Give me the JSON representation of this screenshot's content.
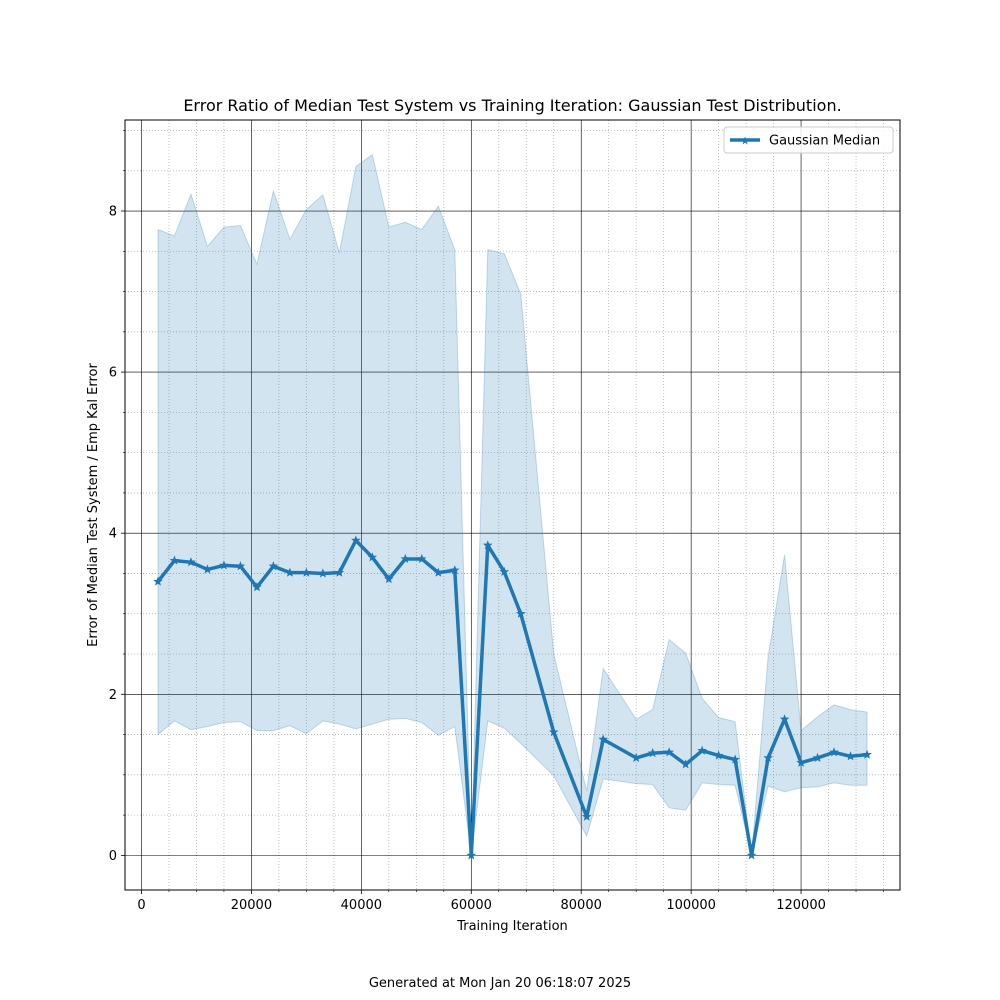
{
  "chart_data": {
    "type": "line",
    "title": "Error Ratio of Median Test System vs Training Iteration: Gaussian Test Distribution.",
    "xlabel": "Training Iteration",
    "ylabel": "Error of Median Test System / Emp Kal Error",
    "xlim": [
      -3000,
      138000
    ],
    "ylim": [
      -0.43,
      9.13
    ],
    "x_ticks": [
      0,
      20000,
      40000,
      60000,
      80000,
      100000,
      120000
    ],
    "x_tick_labels": [
      "0",
      "20000",
      "40000",
      "60000",
      "80000",
      "100000",
      "120000"
    ],
    "y_ticks": [
      0,
      2,
      4,
      6,
      8
    ],
    "y_tick_labels": [
      "0",
      "2",
      "4",
      "6",
      "8"
    ],
    "grid": true,
    "minor_grid": true,
    "legend": {
      "placement": "top-right"
    },
    "series": [
      {
        "name": "Gaussian Median",
        "color": "#1f77b4",
        "marker": "star",
        "x": [
          3000,
          6000,
          9000,
          12000,
          15000,
          18000,
          21000,
          24000,
          27000,
          30000,
          33000,
          36000,
          39000,
          42000,
          45000,
          48000,
          51000,
          54000,
          57000,
          60000,
          63000,
          66000,
          69000,
          75000,
          81000,
          84000,
          90000,
          93000,
          96000,
          99000,
          102000,
          105000,
          108000,
          111000,
          114000,
          117000,
          120000,
          123000,
          126000,
          129000,
          132000
        ],
        "y": [
          3.4,
          3.66,
          3.64,
          3.55,
          3.6,
          3.59,
          3.33,
          3.59,
          3.51,
          3.51,
          3.5,
          3.51,
          3.91,
          3.7,
          3.43,
          3.68,
          3.68,
          3.51,
          3.54,
          0.0,
          3.85,
          3.52,
          3.0,
          1.53,
          0.48,
          1.44,
          1.21,
          1.27,
          1.28,
          1.13,
          1.3,
          1.24,
          1.19,
          0.0,
          1.21,
          1.69,
          1.15,
          1.21,
          1.28,
          1.23,
          1.25
        ],
        "band_upper": [
          7.77,
          7.69,
          8.21,
          7.56,
          7.8,
          7.82,
          7.34,
          8.25,
          7.65,
          8.02,
          8.2,
          7.48,
          8.55,
          8.7,
          7.8,
          7.86,
          7.77,
          8.06,
          7.52,
          0.0,
          7.52,
          7.47,
          6.97,
          2.5,
          0.8,
          2.32,
          1.69,
          1.81,
          2.68,
          2.51,
          1.95,
          1.71,
          1.66,
          0.0,
          2.46,
          3.73,
          1.55,
          1.72,
          1.87,
          1.81,
          1.78
        ],
        "band_lower": [
          1.5,
          1.67,
          1.56,
          1.6,
          1.65,
          1.66,
          1.55,
          1.55,
          1.61,
          1.51,
          1.67,
          1.63,
          1.57,
          1.63,
          1.69,
          1.7,
          1.65,
          1.49,
          1.6,
          0.0,
          1.67,
          1.58,
          1.39,
          0.99,
          0.24,
          0.95,
          0.89,
          0.88,
          0.59,
          0.56,
          0.9,
          0.88,
          0.87,
          0.0,
          0.86,
          0.79,
          0.84,
          0.85,
          0.9,
          0.87,
          0.87
        ]
      }
    ]
  },
  "footer": {
    "text": "Generated at Mon Jan 20 06:18:07 2025"
  }
}
